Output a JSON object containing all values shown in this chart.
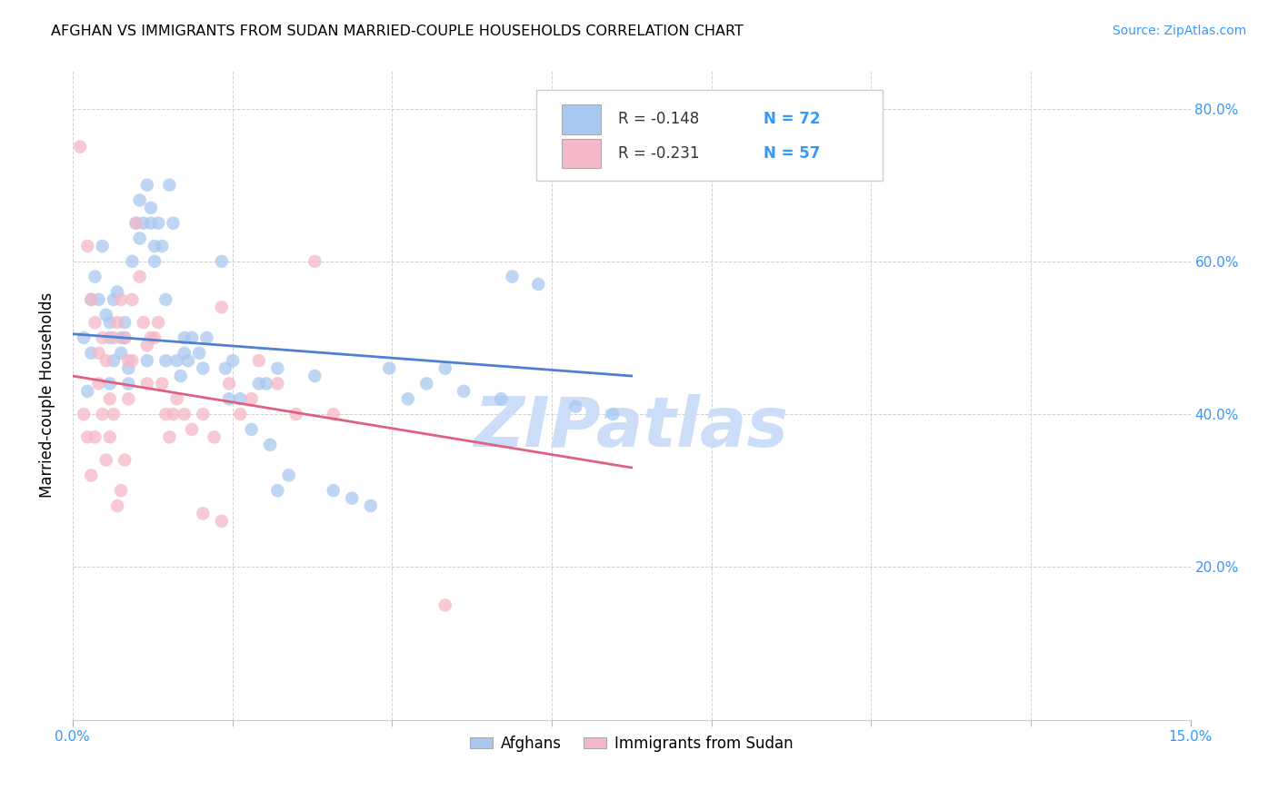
{
  "title": "AFGHAN VS IMMIGRANTS FROM SUDAN MARRIED-COUPLE HOUSEHOLDS CORRELATION CHART",
  "source": "Source: ZipAtlas.com",
  "ylabel": "Married-couple Households",
  "xlim": [
    0.0,
    15.0
  ],
  "ylim": [
    0.0,
    85.0
  ],
  "yticks": [
    20.0,
    40.0,
    60.0,
    80.0
  ],
  "xtick_positions": [
    0.0,
    2.142857,
    4.285714,
    6.428571,
    8.571429,
    10.714286,
    12.857143,
    15.0
  ],
  "legend_r_blue": "R = -0.148",
  "legend_n_blue": "N = 72",
  "legend_r_pink": "R = -0.231",
  "legend_n_pink": "N = 57",
  "legend_label_blue": "Afghans",
  "legend_label_pink": "Immigrants from Sudan",
  "blue_color": "#a8c8f0",
  "pink_color": "#f5b8c8",
  "line_blue": "#5080d0",
  "line_pink": "#e06080",
  "watermark": "ZIPatlas",
  "watermark_color": "#ccddf8",
  "blue_scatter": [
    [
      0.15,
      50.0
    ],
    [
      0.25,
      48.0
    ],
    [
      0.3,
      58.0
    ],
    [
      0.35,
      55.0
    ],
    [
      0.4,
      62.0
    ],
    [
      0.45,
      53.0
    ],
    [
      0.5,
      50.0
    ],
    [
      0.5,
      52.0
    ],
    [
      0.55,
      47.0
    ],
    [
      0.55,
      55.0
    ],
    [
      0.6,
      56.0
    ],
    [
      0.65,
      50.0
    ],
    [
      0.65,
      48.0
    ],
    [
      0.7,
      52.0
    ],
    [
      0.7,
      50.0
    ],
    [
      0.75,
      44.0
    ],
    [
      0.8,
      60.0
    ],
    [
      0.85,
      65.0
    ],
    [
      0.9,
      68.0
    ],
    [
      0.9,
      63.0
    ],
    [
      0.95,
      65.0
    ],
    [
      1.0,
      70.0
    ],
    [
      1.05,
      67.0
    ],
    [
      1.05,
      65.0
    ],
    [
      1.1,
      62.0
    ],
    [
      1.1,
      60.0
    ],
    [
      1.15,
      65.0
    ],
    [
      1.2,
      62.0
    ],
    [
      1.25,
      55.0
    ],
    [
      1.3,
      70.0
    ],
    [
      1.35,
      65.0
    ],
    [
      1.4,
      47.0
    ],
    [
      1.45,
      45.0
    ],
    [
      1.5,
      48.0
    ],
    [
      1.55,
      47.0
    ],
    [
      1.6,
      50.0
    ],
    [
      1.7,
      48.0
    ],
    [
      1.8,
      50.0
    ],
    [
      2.0,
      60.0
    ],
    [
      2.05,
      46.0
    ],
    [
      2.1,
      42.0
    ],
    [
      2.15,
      47.0
    ],
    [
      2.4,
      38.0
    ],
    [
      2.5,
      44.0
    ],
    [
      2.6,
      44.0
    ],
    [
      2.65,
      36.0
    ],
    [
      2.75,
      30.0
    ],
    [
      2.9,
      32.0
    ],
    [
      3.25,
      45.0
    ],
    [
      3.5,
      30.0
    ],
    [
      4.25,
      46.0
    ],
    [
      4.5,
      42.0
    ],
    [
      4.75,
      44.0
    ],
    [
      5.0,
      46.0
    ],
    [
      5.25,
      43.0
    ],
    [
      5.75,
      42.0
    ],
    [
      5.9,
      58.0
    ],
    [
      6.25,
      57.0
    ],
    [
      6.75,
      41.0
    ],
    [
      7.25,
      40.0
    ],
    [
      0.2,
      43.0
    ],
    [
      0.25,
      55.0
    ],
    [
      0.5,
      44.0
    ],
    [
      0.75,
      46.0
    ],
    [
      1.0,
      47.0
    ],
    [
      1.25,
      47.0
    ],
    [
      1.5,
      50.0
    ],
    [
      1.75,
      46.0
    ],
    [
      2.25,
      42.0
    ],
    [
      2.75,
      46.0
    ],
    [
      3.75,
      29.0
    ],
    [
      4.0,
      28.0
    ]
  ],
  "pink_scatter": [
    [
      0.1,
      75.0
    ],
    [
      0.2,
      62.0
    ],
    [
      0.25,
      55.0
    ],
    [
      0.3,
      52.0
    ],
    [
      0.35,
      48.0
    ],
    [
      0.4,
      50.0
    ],
    [
      0.45,
      47.0
    ],
    [
      0.5,
      42.0
    ],
    [
      0.55,
      50.0
    ],
    [
      0.6,
      52.0
    ],
    [
      0.65,
      55.0
    ],
    [
      0.7,
      50.0
    ],
    [
      0.75,
      47.0
    ],
    [
      0.75,
      42.0
    ],
    [
      0.8,
      55.0
    ],
    [
      0.85,
      65.0
    ],
    [
      0.9,
      58.0
    ],
    [
      0.95,
      52.0
    ],
    [
      1.0,
      49.0
    ],
    [
      1.05,
      50.0
    ],
    [
      1.1,
      50.0
    ],
    [
      1.15,
      52.0
    ],
    [
      1.2,
      44.0
    ],
    [
      1.25,
      40.0
    ],
    [
      1.3,
      37.0
    ],
    [
      1.35,
      40.0
    ],
    [
      1.4,
      42.0
    ],
    [
      1.5,
      40.0
    ],
    [
      1.6,
      38.0
    ],
    [
      1.75,
      40.0
    ],
    [
      1.9,
      37.0
    ],
    [
      2.0,
      54.0
    ],
    [
      2.1,
      44.0
    ],
    [
      2.25,
      40.0
    ],
    [
      2.4,
      42.0
    ],
    [
      2.5,
      47.0
    ],
    [
      2.75,
      44.0
    ],
    [
      3.0,
      40.0
    ],
    [
      3.25,
      60.0
    ],
    [
      3.5,
      40.0
    ],
    [
      0.15,
      40.0
    ],
    [
      0.2,
      37.0
    ],
    [
      0.25,
      32.0
    ],
    [
      0.3,
      37.0
    ],
    [
      0.35,
      44.0
    ],
    [
      0.4,
      40.0
    ],
    [
      0.45,
      34.0
    ],
    [
      0.5,
      37.0
    ],
    [
      0.55,
      40.0
    ],
    [
      0.6,
      28.0
    ],
    [
      0.65,
      30.0
    ],
    [
      0.7,
      34.0
    ],
    [
      1.75,
      27.0
    ],
    [
      2.0,
      26.0
    ],
    [
      5.0,
      15.0
    ],
    [
      0.8,
      47.0
    ],
    [
      1.0,
      44.0
    ]
  ],
  "blue_trendline": [
    [
      0,
      50.5
    ],
    [
      7.5,
      45.0
    ]
  ],
  "pink_trendline": [
    [
      0,
      45.0
    ],
    [
      7.5,
      33.0
    ]
  ]
}
